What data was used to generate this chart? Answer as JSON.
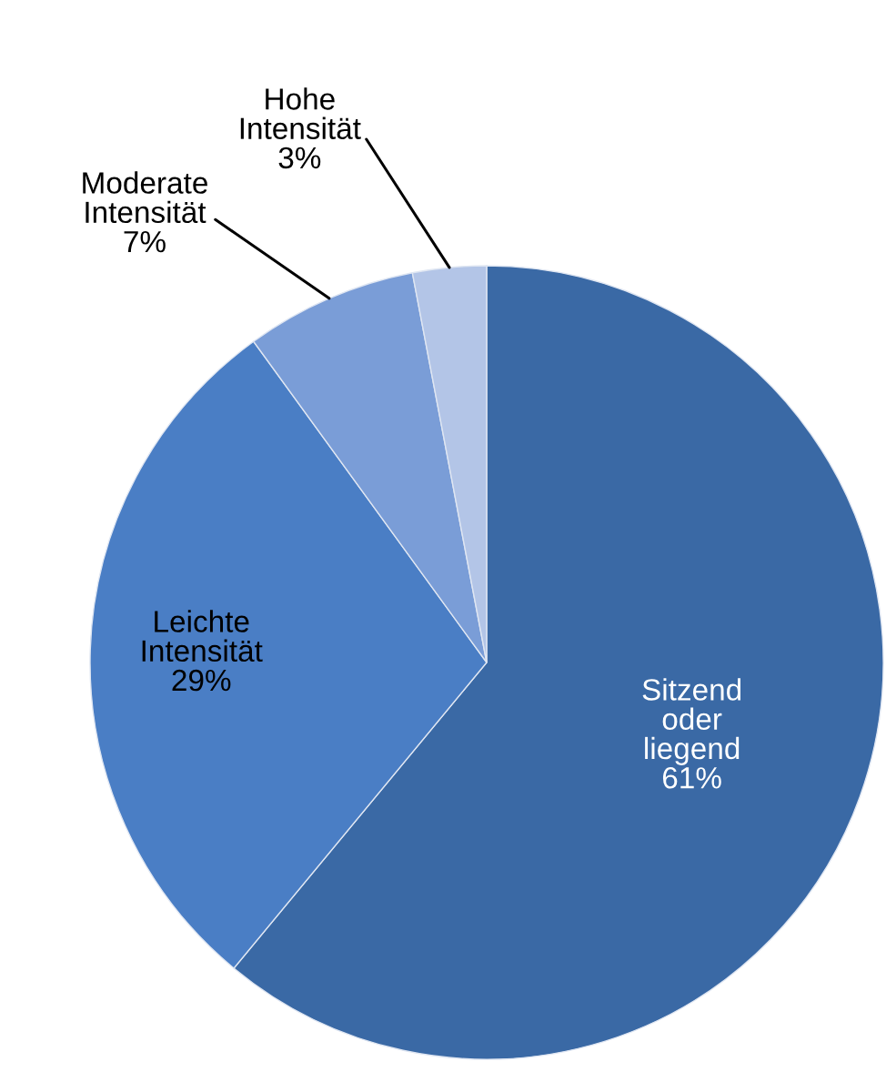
{
  "chart_data": {
    "type": "pie",
    "categories": [
      "Sitzend oder liegend",
      "Leichte Intensität",
      "Moderate Intensität",
      "Hohe Intensität"
    ],
    "values": [
      61,
      29,
      7,
      3
    ],
    "colors": [
      "#3a69a5",
      "#4a7ec5",
      "#7a9dd7",
      "#b3c5e7"
    ],
    "value_labels": [
      "61%",
      "29%",
      "7%",
      "3%"
    ]
  }
}
